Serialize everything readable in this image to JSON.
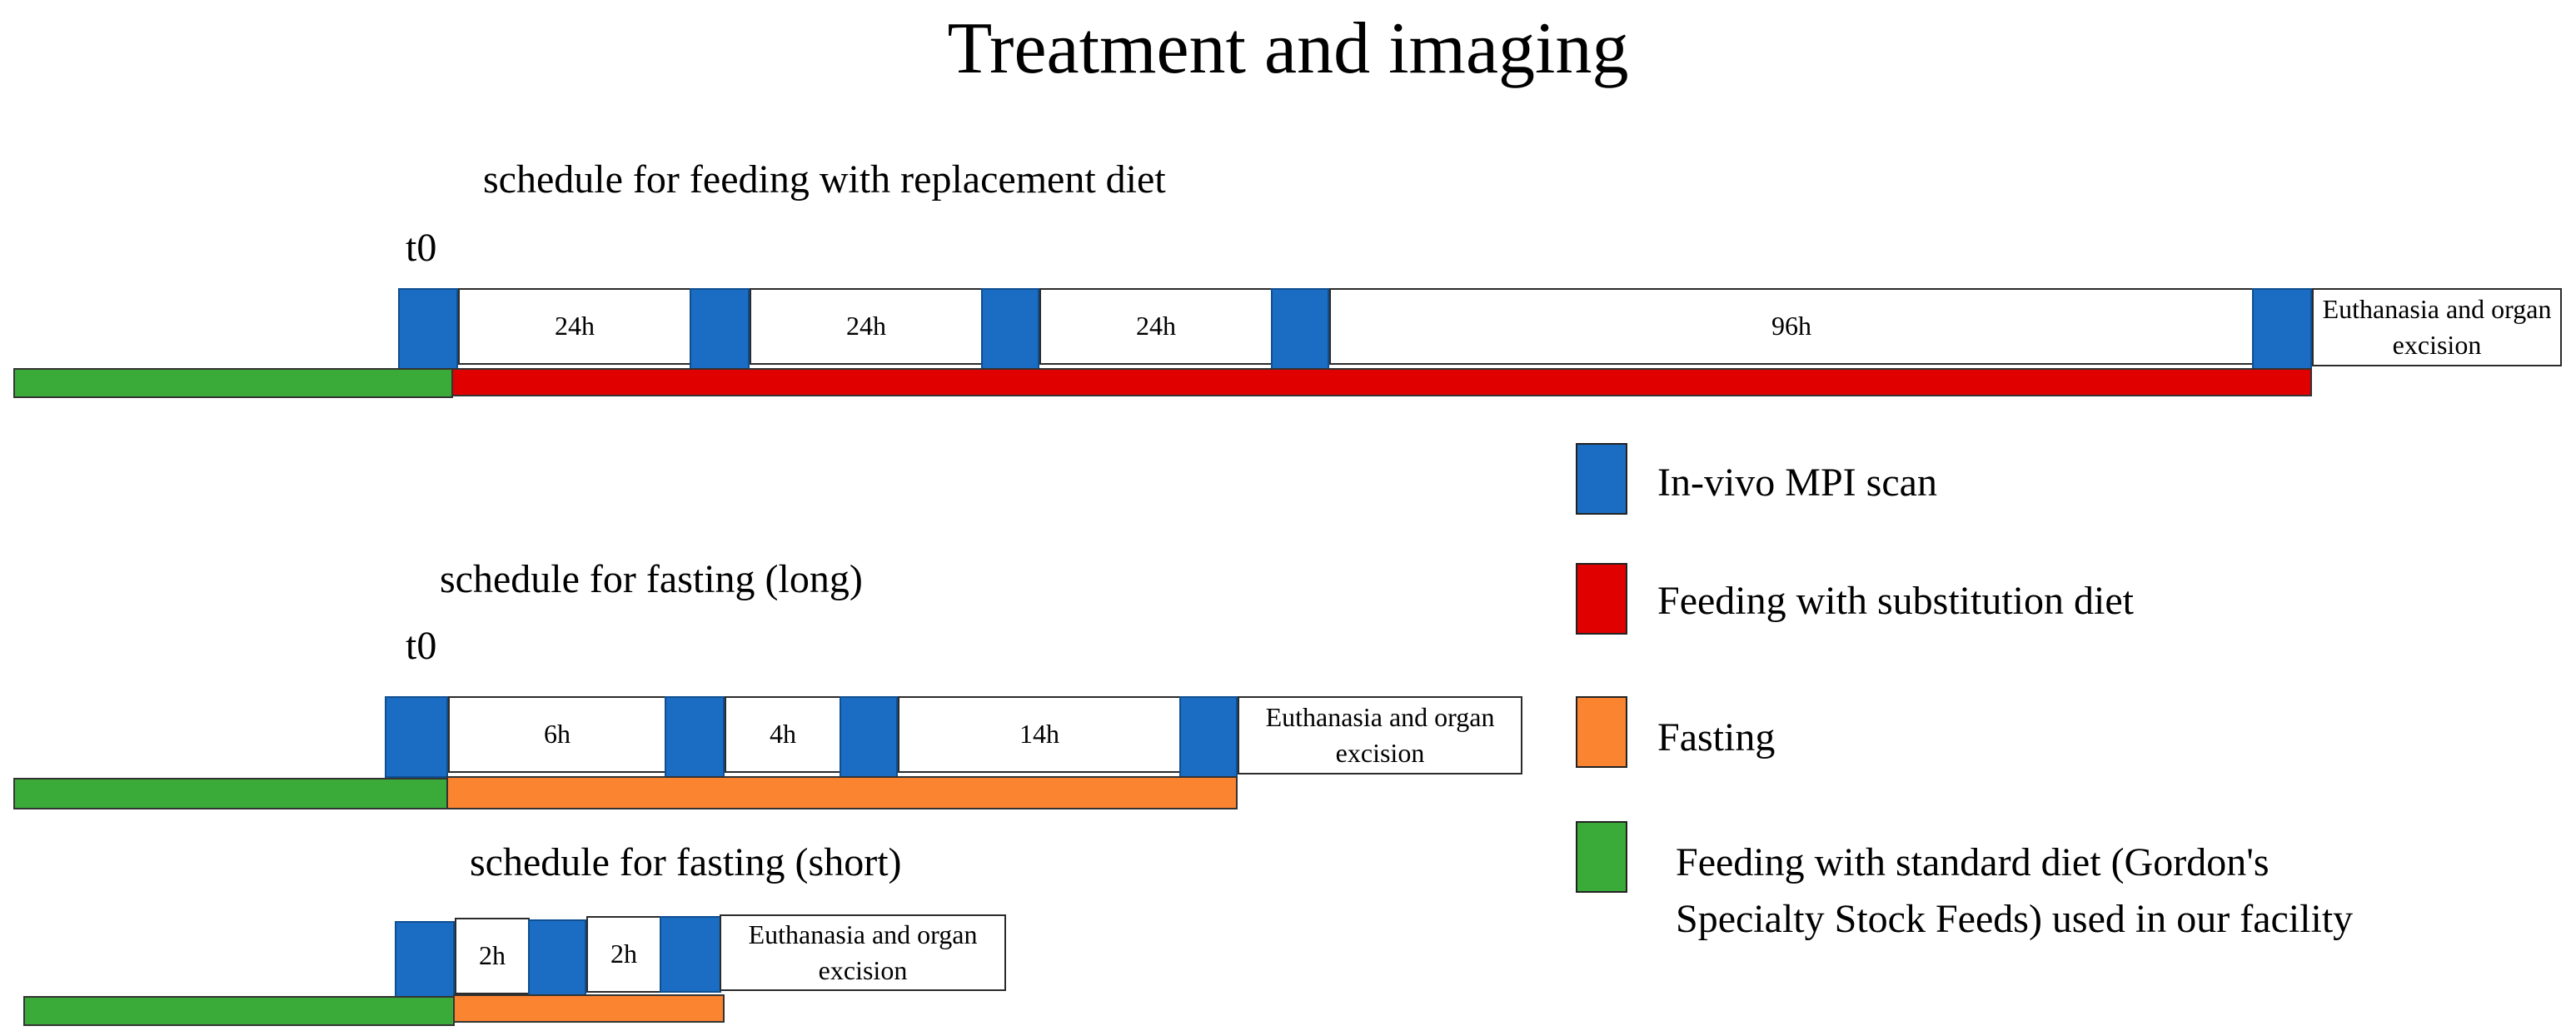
{
  "title": "Treatment and imaging",
  "t0_label": "t0",
  "schedules": [
    {
      "title": "schedule for feeding with replacement diet",
      "intervals": [
        "24h",
        "24h",
        "24h",
        "96h"
      ],
      "end_label": "Euthanasia and organ excision",
      "treatment": "Feeding with substitution diet"
    },
    {
      "title": "schedule for fasting (long)",
      "intervals": [
        "6h",
        "4h",
        "14h"
      ],
      "end_label": "Euthanasia and organ excision",
      "treatment": "Fasting"
    },
    {
      "title": "schedule for fasting (short)",
      "intervals": [
        "2h",
        "2h"
      ],
      "end_label": "Euthanasia and organ excision",
      "treatment": "Fasting"
    }
  ],
  "legend": [
    {
      "label": "In-vivo MPI scan",
      "color": "#1a6dc2"
    },
    {
      "label": "Feeding with substitution diet",
      "color": "#e10000"
    },
    {
      "label": "Fasting",
      "color": "#fb8431"
    },
    {
      "label_line1": "Feeding with standard diet  (Gordon's",
      "label_line2": "Specialty Stock Feeds) used in our facility",
      "color": "#3aab38"
    }
  ]
}
